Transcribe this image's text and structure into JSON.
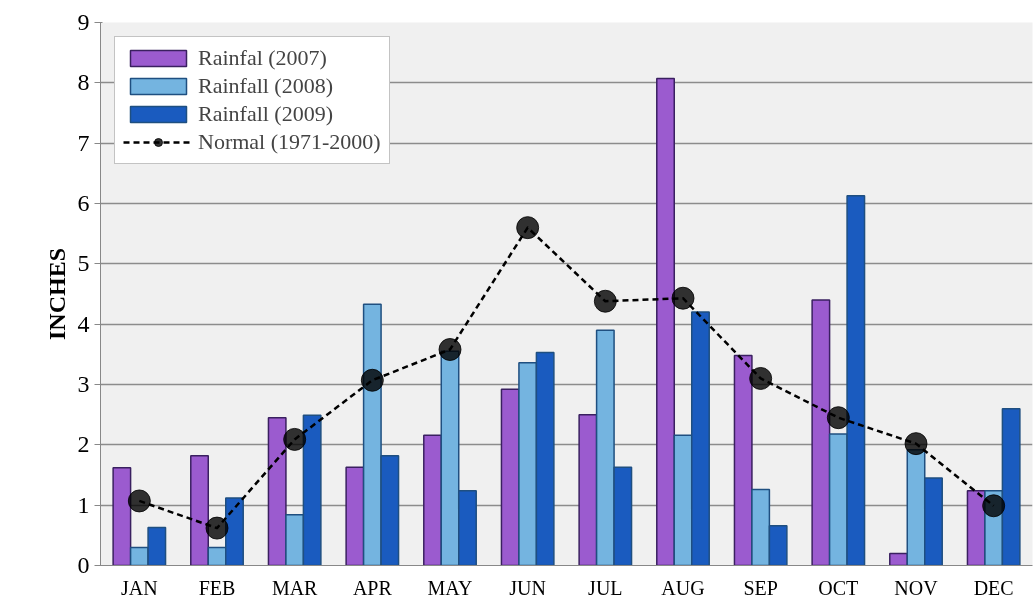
{
  "chart_data": {
    "type": "bar",
    "ylabel": "INCHES",
    "categories": [
      "JAN",
      "FEB",
      "MAR",
      "APR",
      "MAY",
      "JUN",
      "JUL",
      "AUG",
      "SEP",
      "OCT",
      "NOV",
      "DEC"
    ],
    "series": [
      {
        "name": "Rainfal (2007)",
        "color": "#9b5bcf",
        "values": [
          1.62,
          1.82,
          2.45,
          1.63,
          2.16,
          2.92,
          2.5,
          8.07,
          3.48,
          4.4,
          0.2,
          1.24
        ]
      },
      {
        "name": "Rainfall (2008)",
        "color": "#74b4e0",
        "values": [
          0.3,
          0.3,
          0.84,
          4.33,
          3.55,
          3.36,
          3.9,
          2.16,
          1.26,
          2.18,
          1.92,
          1.24
        ]
      },
      {
        "name": "Rainfall (2009)",
        "color": "#1a5bbf",
        "values": [
          0.63,
          1.12,
          2.49,
          1.82,
          1.24,
          3.53,
          1.63,
          4.2,
          0.66,
          6.13,
          1.45,
          2.6
        ]
      },
      {
        "name": "Normal (1971-2000)",
        "type": "line",
        "color": "#000000",
        "marker": "circle",
        "line_style": "dashed",
        "values": [
          1.07,
          0.62,
          2.09,
          3.07,
          3.58,
          5.6,
          4.38,
          4.43,
          3.1,
          2.45,
          2.02,
          0.99
        ]
      }
    ],
    "ylim": [
      0,
      9
    ],
    "yticks": [
      0,
      1,
      2,
      3,
      4,
      5,
      6,
      7,
      8,
      9
    ],
    "grid": "y",
    "legend": "top left"
  }
}
